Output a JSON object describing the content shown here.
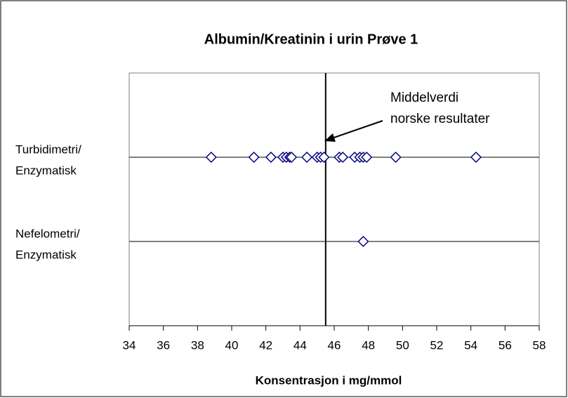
{
  "chart_data": {
    "type": "strip",
    "title": "Albumin/Kreatinin i urin Prøve 1",
    "xlabel": "Konsentrasjon i mg/mmol",
    "categories": [
      [
        "Turbidimetri/",
        "Enzymatisk"
      ],
      [
        "Nefelometri/",
        "Enzymatisk"
      ]
    ],
    "series": [
      {
        "color": "#000080",
        "values": [
          [
            38.8,
            41.3,
            42.3,
            43.0,
            43.2,
            43.4,
            43.5,
            44.4,
            45.0,
            45.2,
            45.4,
            46.3,
            46.5,
            47.2,
            47.5,
            47.7,
            47.9,
            49.6,
            54.3
          ],
          [
            47.7
          ]
        ]
      }
    ],
    "xlim": [
      34,
      58
    ],
    "xticks": [
      34,
      36,
      38,
      40,
      42,
      44,
      46,
      48,
      50,
      52,
      54,
      56,
      58
    ],
    "mean_line": {
      "value": 45.5,
      "label": [
        "Middelverdi",
        "norske resultater"
      ]
    }
  }
}
